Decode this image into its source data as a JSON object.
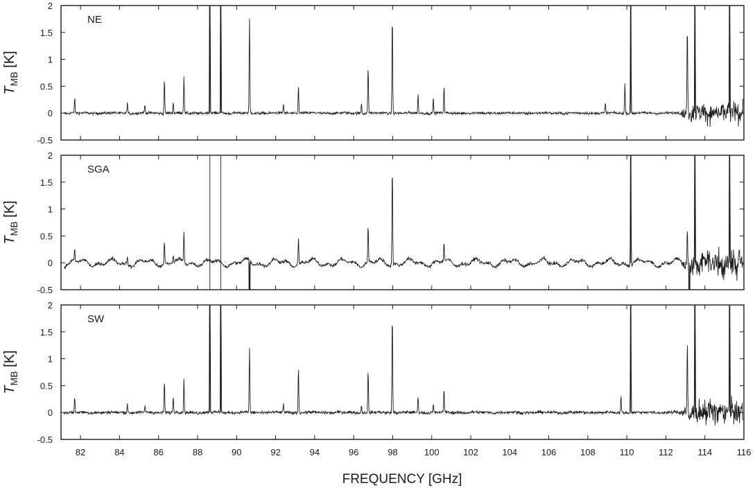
{
  "chart_data": {
    "type": "line",
    "xlabel": "FREQUENCY [GHz]",
    "ylabel_italic": "T",
    "ylabel_subscript": "MB",
    "ylabel_unit": "[K]",
    "xlim": [
      81,
      116
    ],
    "ylim": [
      -0.5,
      2
    ],
    "x_ticks": [
      82,
      84,
      86,
      88,
      90,
      92,
      94,
      96,
      98,
      100,
      102,
      104,
      106,
      108,
      110,
      112,
      114,
      116
    ],
    "y_ticks": [
      -0.5,
      0,
      0.5,
      1,
      1.5,
      2
    ],
    "y_tick_labels": [
      "-0.5",
      "0",
      "0.5",
      "1",
      "1.5",
      "2"
    ],
    "grid": false,
    "line_color": "#1a1a1a",
    "panels": [
      {
        "label": "NE",
        "noise": 0.018,
        "baseline_wave": 0.005,
        "edge_noise": 0.14,
        "lines": [
          {
            "f": 81.7,
            "t": 0.28
          },
          {
            "f": 84.4,
            "t": 0.2
          },
          {
            "f": 85.3,
            "t": 0.15
          },
          {
            "f": 86.3,
            "t": 0.65
          },
          {
            "f": 86.75,
            "t": 0.2
          },
          {
            "f": 87.3,
            "t": 0.7
          },
          {
            "f": 88.63,
            "t": 6.0
          },
          {
            "f": 89.19,
            "t": 6.0
          },
          {
            "f": 90.66,
            "t": 1.75
          },
          {
            "f": 92.4,
            "t": 0.18
          },
          {
            "f": 93.17,
            "t": 0.52
          },
          {
            "f": 96.4,
            "t": 0.2
          },
          {
            "f": 96.74,
            "t": 0.88
          },
          {
            "f": 97.98,
            "t": 1.85
          },
          {
            "f": 99.3,
            "t": 0.35
          },
          {
            "f": 100.08,
            "t": 0.28
          },
          {
            "f": 100.63,
            "t": 0.5
          },
          {
            "f": 108.9,
            "t": 0.18
          },
          {
            "f": 109.9,
            "t": 0.55
          },
          {
            "f": 110.2,
            "t": 6.0
          },
          {
            "f": 113.1,
            "t": 1.65
          },
          {
            "f": 113.49,
            "t": 6.0
          },
          {
            "f": 115.27,
            "t": 6.0
          }
        ]
      },
      {
        "label": "SGA",
        "noise": 0.022,
        "baseline_wave": 0.05,
        "edge_noise": 0.18,
        "lines": [
          {
            "f": 81.7,
            "t": 0.22
          },
          {
            "f": 84.4,
            "t": 0.15
          },
          {
            "f": 86.3,
            "t": 0.45
          },
          {
            "f": 86.75,
            "t": 0.15
          },
          {
            "f": 87.3,
            "t": 0.6
          },
          {
            "f": 88.63,
            "t": 6.0
          },
          {
            "f": 88.63,
            "t": -6.0
          },
          {
            "f": 89.19,
            "t": 6.0
          },
          {
            "f": 89.19,
            "t": -6.0
          },
          {
            "f": 90.66,
            "t": 0.95
          },
          {
            "f": 90.66,
            "t": -6.0
          },
          {
            "f": 93.17,
            "t": 0.48
          },
          {
            "f": 96.74,
            "t": 0.7
          },
          {
            "f": 97.98,
            "t": 1.85
          },
          {
            "f": 100.63,
            "t": 0.35
          },
          {
            "f": 110.2,
            "t": 6.0
          },
          {
            "f": 113.1,
            "t": 0.6
          },
          {
            "f": 113.2,
            "t": -6.0
          },
          {
            "f": 113.49,
            "t": 6.0
          },
          {
            "f": 115.27,
            "t": 6.0
          }
        ]
      },
      {
        "label": "SW",
        "noise": 0.02,
        "baseline_wave": 0.006,
        "edge_noise": 0.16,
        "lines": [
          {
            "f": 81.7,
            "t": 0.28
          },
          {
            "f": 84.4,
            "t": 0.18
          },
          {
            "f": 85.3,
            "t": 0.12
          },
          {
            "f": 86.3,
            "t": 0.58
          },
          {
            "f": 86.75,
            "t": 0.3
          },
          {
            "f": 87.3,
            "t": 0.6
          },
          {
            "f": 88.63,
            "t": 6.0
          },
          {
            "f": 89.19,
            "t": 6.0
          },
          {
            "f": 90.66,
            "t": 1.2
          },
          {
            "f": 92.4,
            "t": 0.15
          },
          {
            "f": 93.17,
            "t": 0.85
          },
          {
            "f": 96.4,
            "t": 0.15
          },
          {
            "f": 96.74,
            "t": 0.78
          },
          {
            "f": 97.98,
            "t": 1.85
          },
          {
            "f": 99.3,
            "t": 0.3
          },
          {
            "f": 100.08,
            "t": 0.15
          },
          {
            "f": 100.63,
            "t": 0.45
          },
          {
            "f": 109.7,
            "t": 0.3
          },
          {
            "f": 110.2,
            "t": 6.0
          },
          {
            "f": 113.1,
            "t": 1.3
          },
          {
            "f": 113.49,
            "t": 6.0
          },
          {
            "f": 115.27,
            "t": 6.0
          }
        ]
      }
    ]
  }
}
